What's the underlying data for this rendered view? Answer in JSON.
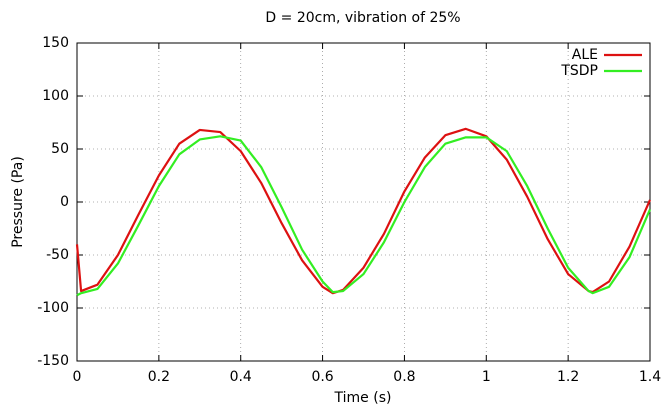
{
  "chart_data": {
    "type": "line",
    "title": "D = 20cm, vibration of 25%",
    "x_label": "Time (s)",
    "y_label": "Pressure (Pa)",
    "x": [
      0,
      0.01,
      0.05,
      0.1,
      0.15,
      0.2,
      0.25,
      0.3,
      0.35,
      0.4,
      0.45,
      0.5,
      0.55,
      0.6,
      0.625,
      0.65,
      0.7,
      0.75,
      0.8,
      0.85,
      0.9,
      0.95,
      1.0,
      1.05,
      1.1,
      1.15,
      1.2,
      1.25,
      1.26,
      1.3,
      1.35,
      1.4
    ],
    "series": [
      {
        "name": "ALE",
        "color": "#dd1111",
        "values": [
          -40,
          -84,
          -78,
          -50,
          -12,
          25,
          55,
          68,
          66,
          48,
          18,
          -20,
          -55,
          -80,
          -86,
          -83,
          -62,
          -30,
          10,
          42,
          63,
          69,
          62,
          40,
          5,
          -35,
          -68,
          -84,
          -85,
          -75,
          -42,
          2
        ]
      },
      {
        "name": "TSDP",
        "color": "#33ee22",
        "values": [
          -88,
          -86,
          -82,
          -58,
          -22,
          15,
          45,
          59,
          62,
          58,
          33,
          -5,
          -45,
          -75,
          -85,
          -84,
          -68,
          -38,
          0,
          33,
          55,
          61,
          61,
          48,
          15,
          -25,
          -62,
          -84,
          -86,
          -80,
          -52,
          -7
        ]
      }
    ],
    "xlim": [
      0,
      1.4
    ],
    "xticks": [
      0,
      0.2,
      0.4,
      0.6,
      0.8,
      1,
      1.2,
      1.4
    ],
    "ylim": [
      -150,
      150
    ],
    "yticks": [
      -150,
      -100,
      -50,
      0,
      50,
      100,
      150
    ],
    "grid": true,
    "legend": "top-right"
  }
}
